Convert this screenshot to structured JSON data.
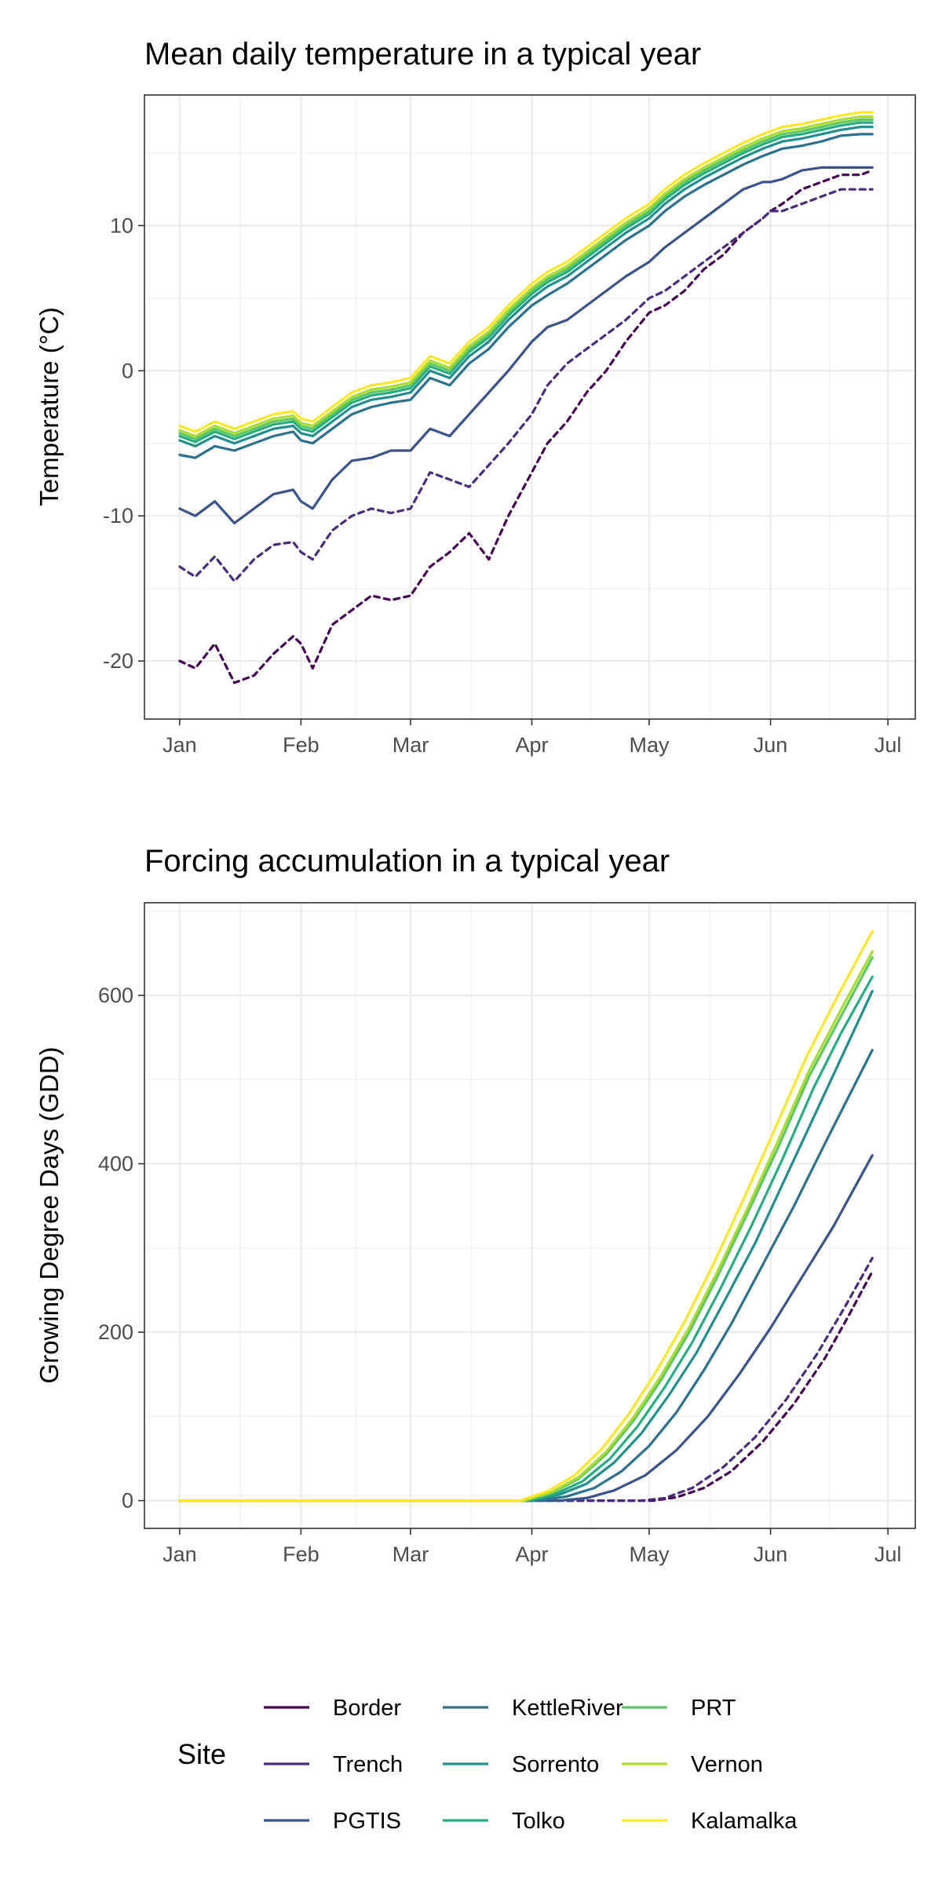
{
  "chart_data": [
    {
      "type": "line",
      "title": "Mean daily temperature in a typical year",
      "xlabel": "",
      "ylabel": "Temperature (°C)",
      "x_tick_labels": [
        "Jan",
        "Feb",
        "Mar",
        "Apr",
        "May",
        "Jun",
        "Jul"
      ],
      "x_tick_days": [
        1,
        32,
        60,
        91,
        121,
        152,
        182
      ],
      "xlim": [
        -8,
        189
      ],
      "y_ticks": [
        10,
        0,
        -10,
        -20
      ],
      "ylim": [
        -24,
        19
      ],
      "grid": true,
      "series": [
        {
          "name": "Border",
          "dashed": true,
          "x": [
            1,
            5,
            10,
            15,
            20,
            25,
            30,
            32,
            35,
            40,
            45,
            50,
            55,
            60,
            65,
            70,
            75,
            80,
            85,
            91,
            95,
            100,
            105,
            110,
            115,
            121,
            125,
            130,
            135,
            140,
            145,
            150,
            152,
            155,
            160,
            165,
            170,
            175,
            178
          ],
          "y": [
            -20,
            -20.5,
            -18.8,
            -21.5,
            -21,
            -19.5,
            -18.3,
            -18.8,
            -20.5,
            -17.5,
            -16.5,
            -15.5,
            -15.8,
            -15.5,
            -13.5,
            -12.5,
            -11.2,
            -13,
            -10,
            -7,
            -5,
            -3.5,
            -1.5,
            0,
            2,
            4,
            4.5,
            5.5,
            7,
            8,
            9.5,
            10.5,
            11,
            11.5,
            12.5,
            13,
            13.5,
            13.5,
            13.8
          ]
        },
        {
          "name": "Trench",
          "dashed": true,
          "x": [
            1,
            5,
            10,
            15,
            20,
            25,
            30,
            32,
            35,
            40,
            45,
            50,
            55,
            60,
            65,
            70,
            75,
            80,
            85,
            91,
            95,
            100,
            105,
            110,
            115,
            121,
            125,
            130,
            135,
            140,
            145,
            150,
            152,
            155,
            160,
            165,
            170,
            175,
            178
          ],
          "y": [
            -13.5,
            -14.2,
            -12.8,
            -14.5,
            -13,
            -12,
            -11.8,
            -12.5,
            -13,
            -11,
            -10,
            -9.5,
            -9.8,
            -9.5,
            -7,
            -7.5,
            -8,
            -6.5,
            -5,
            -3,
            -1,
            0.5,
            1.5,
            2.5,
            3.5,
            5,
            5.5,
            6.5,
            7.5,
            8.5,
            9.5,
            10.5,
            11,
            11,
            11.5,
            12,
            12.5,
            12.5,
            12.5
          ]
        },
        {
          "name": "PGTIS",
          "x": [
            1,
            5,
            10,
            15,
            20,
            25,
            30,
            32,
            35,
            40,
            45,
            50,
            55,
            60,
            65,
            70,
            75,
            80,
            85,
            91,
            95,
            100,
            105,
            110,
            115,
            121,
            125,
            130,
            135,
            140,
            145,
            150,
            152,
            155,
            160,
            165,
            170,
            175,
            178
          ],
          "y": [
            -9.5,
            -10,
            -9,
            -10.5,
            -9.5,
            -8.5,
            -8.2,
            -9,
            -9.5,
            -7.5,
            -6.2,
            -6,
            -5.5,
            -5.5,
            -4,
            -4.5,
            -3,
            -1.5,
            0,
            2,
            3,
            3.5,
            4.5,
            5.5,
            6.5,
            7.5,
            8.5,
            9.5,
            10.5,
            11.5,
            12.5,
            13,
            13,
            13.2,
            13.8,
            14,
            14,
            14,
            14
          ]
        },
        {
          "name": "KettleRiver",
          "x": [
            1,
            5,
            10,
            15,
            20,
            25,
            30,
            32,
            35,
            40,
            45,
            50,
            55,
            60,
            65,
            70,
            75,
            80,
            85,
            91,
            95,
            100,
            105,
            110,
            115,
            121,
            125,
            130,
            135,
            140,
            145,
            150,
            152,
            155,
            160,
            165,
            170,
            175,
            178
          ],
          "y": [
            -5.8,
            -6,
            -5.2,
            -5.5,
            -5,
            -4.5,
            -4.2,
            -4.8,
            -5,
            -4,
            -3,
            -2.5,
            -2.2,
            -2,
            -0.5,
            -1,
            0.5,
            1.5,
            3,
            4.5,
            5.2,
            6,
            7,
            8,
            9,
            10,
            11,
            12,
            12.8,
            13.5,
            14.2,
            14.8,
            15,
            15.3,
            15.5,
            15.8,
            16.2,
            16.3,
            16.3
          ]
        },
        {
          "name": "Sorrento",
          "x": [
            1,
            5,
            10,
            15,
            20,
            25,
            30,
            32,
            35,
            40,
            45,
            50,
            55,
            60,
            65,
            70,
            75,
            80,
            85,
            91,
            95,
            100,
            105,
            110,
            115,
            121,
            125,
            130,
            135,
            140,
            145,
            150,
            152,
            155,
            160,
            165,
            170,
            175,
            178
          ],
          "y": [
            -4.8,
            -5.2,
            -4.5,
            -5,
            -4.5,
            -4,
            -3.8,
            -4.3,
            -4.5,
            -3.5,
            -2.5,
            -2,
            -1.8,
            -1.5,
            0,
            -0.5,
            1,
            2,
            3.5,
            5,
            5.8,
            6.5,
            7.5,
            8.5,
            9.5,
            10.5,
            11.5,
            12.5,
            13.3,
            14,
            14.7,
            15.3,
            15.5,
            15.8,
            16,
            16.3,
            16.6,
            16.8,
            16.8
          ]
        },
        {
          "name": "Tolko",
          "x": [
            1,
            5,
            10,
            15,
            20,
            25,
            30,
            32,
            35,
            40,
            45,
            50,
            55,
            60,
            65,
            70,
            75,
            80,
            85,
            91,
            95,
            100,
            105,
            110,
            115,
            121,
            125,
            130,
            135,
            140,
            145,
            150,
            152,
            155,
            160,
            165,
            170,
            175,
            178
          ],
          "y": [
            -4.5,
            -4.9,
            -4.2,
            -4.7,
            -4.2,
            -3.7,
            -3.5,
            -4,
            -4.2,
            -3.2,
            -2.2,
            -1.7,
            -1.5,
            -1.2,
            0.3,
            -0.2,
            1.3,
            2.3,
            3.8,
            5.3,
            6.1,
            6.8,
            7.8,
            8.8,
            9.8,
            10.8,
            11.8,
            12.8,
            13.6,
            14.3,
            15,
            15.6,
            15.8,
            16.1,
            16.3,
            16.6,
            16.9,
            17.1,
            17.1
          ]
        },
        {
          "name": "PRT",
          "x": [
            1,
            5,
            10,
            15,
            20,
            25,
            30,
            32,
            35,
            40,
            45,
            50,
            55,
            60,
            65,
            70,
            75,
            80,
            85,
            91,
            95,
            100,
            105,
            110,
            115,
            121,
            125,
            130,
            135,
            140,
            145,
            150,
            152,
            155,
            160,
            165,
            170,
            175,
            178
          ],
          "y": [
            -4.3,
            -4.7,
            -4,
            -4.5,
            -4,
            -3.5,
            -3.3,
            -3.8,
            -4,
            -3,
            -2,
            -1.5,
            -1.3,
            -1,
            0.5,
            0,
            1.5,
            2.5,
            4,
            5.5,
            6.3,
            7,
            8,
            9,
            10,
            11,
            12,
            13,
            13.8,
            14.5,
            15.2,
            15.8,
            16,
            16.3,
            16.5,
            16.8,
            17.1,
            17.3,
            17.3
          ]
        },
        {
          "name": "Vernon",
          "x": [
            1,
            5,
            10,
            15,
            20,
            25,
            30,
            32,
            35,
            40,
            45,
            50,
            55,
            60,
            65,
            70,
            75,
            80,
            85,
            91,
            95,
            100,
            105,
            110,
            115,
            121,
            125,
            130,
            135,
            140,
            145,
            150,
            152,
            155,
            160,
            165,
            170,
            175,
            178
          ],
          "y": [
            -4.1,
            -4.5,
            -3.8,
            -4.3,
            -3.8,
            -3.3,
            -3.1,
            -3.6,
            -3.8,
            -2.8,
            -1.8,
            -1.3,
            -1.1,
            -0.8,
            0.7,
            0.2,
            1.7,
            2.7,
            4.2,
            5.7,
            6.5,
            7.2,
            8.2,
            9.2,
            10.2,
            11.2,
            12.2,
            13.2,
            14,
            14.7,
            15.4,
            16,
            16.2,
            16.5,
            16.7,
            17,
            17.3,
            17.5,
            17.5
          ]
        },
        {
          "name": "Kalamalka",
          "x": [
            1,
            5,
            10,
            15,
            20,
            25,
            30,
            32,
            35,
            40,
            45,
            50,
            55,
            60,
            65,
            70,
            75,
            80,
            85,
            91,
            95,
            100,
            105,
            110,
            115,
            121,
            125,
            130,
            135,
            140,
            145,
            150,
            152,
            155,
            160,
            165,
            170,
            175,
            178
          ],
          "y": [
            -3.8,
            -4.2,
            -3.5,
            -4,
            -3.5,
            -3,
            -2.8,
            -3.3,
            -3.5,
            -2.5,
            -1.5,
            -1,
            -0.8,
            -0.5,
            1,
            0.5,
            2,
            3,
            4.5,
            6,
            6.8,
            7.5,
            8.5,
            9.5,
            10.5,
            11.5,
            12.5,
            13.5,
            14.3,
            15,
            15.7,
            16.3,
            16.5,
            16.8,
            17,
            17.3,
            17.6,
            17.8,
            17.8
          ]
        }
      ]
    },
    {
      "type": "line",
      "title": "Forcing accumulation in a typical year",
      "xlabel": "",
      "ylabel": "Growing Degree Days (GDD)",
      "x_tick_labels": [
        "Jan",
        "Feb",
        "Mar",
        "Apr",
        "May",
        "Jun",
        "Jul"
      ],
      "x_tick_days": [
        1,
        32,
        60,
        91,
        121,
        152,
        182
      ],
      "xlim": [
        -8,
        189
      ],
      "y_ticks": [
        0,
        200,
        400,
        600
      ],
      "ylim": [
        -33,
        710
      ],
      "grid": true,
      "series": [
        {
          "name": "Border",
          "dashed": true,
          "x": [
            1,
            122,
            128,
            135,
            142,
            150,
            158,
            166,
            172,
            178
          ],
          "y": [
            0,
            0,
            4,
            15,
            35,
            70,
            115,
            170,
            220,
            272
          ]
        },
        {
          "name": "Trench",
          "dashed": true,
          "x": [
            1,
            119,
            125,
            132,
            140,
            148,
            156,
            164,
            171,
            178
          ],
          "y": [
            0,
            0,
            3,
            15,
            40,
            75,
            120,
            175,
            230,
            288
          ]
        },
        {
          "name": "PGTIS",
          "x": [
            1,
            98,
            105,
            112,
            120,
            128,
            136,
            144,
            152,
            160,
            168,
            178
          ],
          "y": [
            0,
            0,
            3,
            12,
            30,
            60,
            100,
            150,
            205,
            265,
            325,
            410
          ]
        },
        {
          "name": "KettleRiver",
          "x": [
            1,
            93,
            100,
            107,
            114,
            121,
            128,
            135,
            142,
            150,
            158,
            166,
            178
          ],
          "y": [
            0,
            0,
            5,
            15,
            35,
            65,
            105,
            155,
            210,
            280,
            350,
            425,
            535
          ]
        },
        {
          "name": "Sorrento",
          "x": [
            1,
            91,
            98,
            105,
            112,
            119,
            126,
            133,
            140,
            148,
            156,
            164,
            171,
            178
          ],
          "y": [
            0,
            0,
            7,
            20,
            45,
            80,
            125,
            175,
            235,
            305,
            385,
            465,
            535,
            605
          ]
        },
        {
          "name": "Tolko",
          "x": [
            1,
            90,
            97,
            104,
            111,
            118,
            125,
            132,
            139,
            147,
            155,
            163,
            170,
            178
          ],
          "y": [
            0,
            0,
            8,
            23,
            50,
            88,
            135,
            188,
            250,
            325,
            405,
            490,
            555,
            622
          ]
        },
        {
          "name": "PRT",
          "x": [
            1,
            89,
            96,
            103,
            110,
            117,
            124,
            131,
            138,
            146,
            154,
            162,
            170,
            178
          ],
          "y": [
            0,
            0,
            9,
            26,
            55,
            95,
            143,
            198,
            262,
            340,
            420,
            505,
            575,
            645
          ]
        },
        {
          "name": "Vernon",
          "x": [
            1,
            89,
            96,
            103,
            110,
            117,
            124,
            131,
            138,
            146,
            154,
            162,
            170,
            178
          ],
          "y": [
            0,
            0,
            10,
            28,
            58,
            99,
            148,
            204,
            268,
            346,
            428,
            512,
            583,
            652
          ]
        },
        {
          "name": "Kalamalka",
          "x": [
            1,
            88,
            95,
            102,
            109,
            116,
            123,
            130,
            137,
            145,
            153,
            161,
            169,
            178
          ],
          "y": [
            0,
            0,
            11,
            30,
            62,
            104,
            155,
            212,
            277,
            357,
            440,
            525,
            598,
            676
          ]
        }
      ]
    }
  ],
  "legend": {
    "title": "Site",
    "position": "bottom",
    "items": [
      {
        "name": "Border",
        "color": "#440154"
      },
      {
        "name": "Trench",
        "color": "#472D7B"
      },
      {
        "name": "PGTIS",
        "color": "#3B528B"
      },
      {
        "name": "KettleRiver",
        "color": "#2C728E"
      },
      {
        "name": "Sorrento",
        "color": "#21908C"
      },
      {
        "name": "Tolko",
        "color": "#27AD81"
      },
      {
        "name": "PRT",
        "color": "#5DC863"
      },
      {
        "name": "Vernon",
        "color": "#AADC32"
      },
      {
        "name": "Kalamalka",
        "color": "#FDE725"
      }
    ]
  }
}
